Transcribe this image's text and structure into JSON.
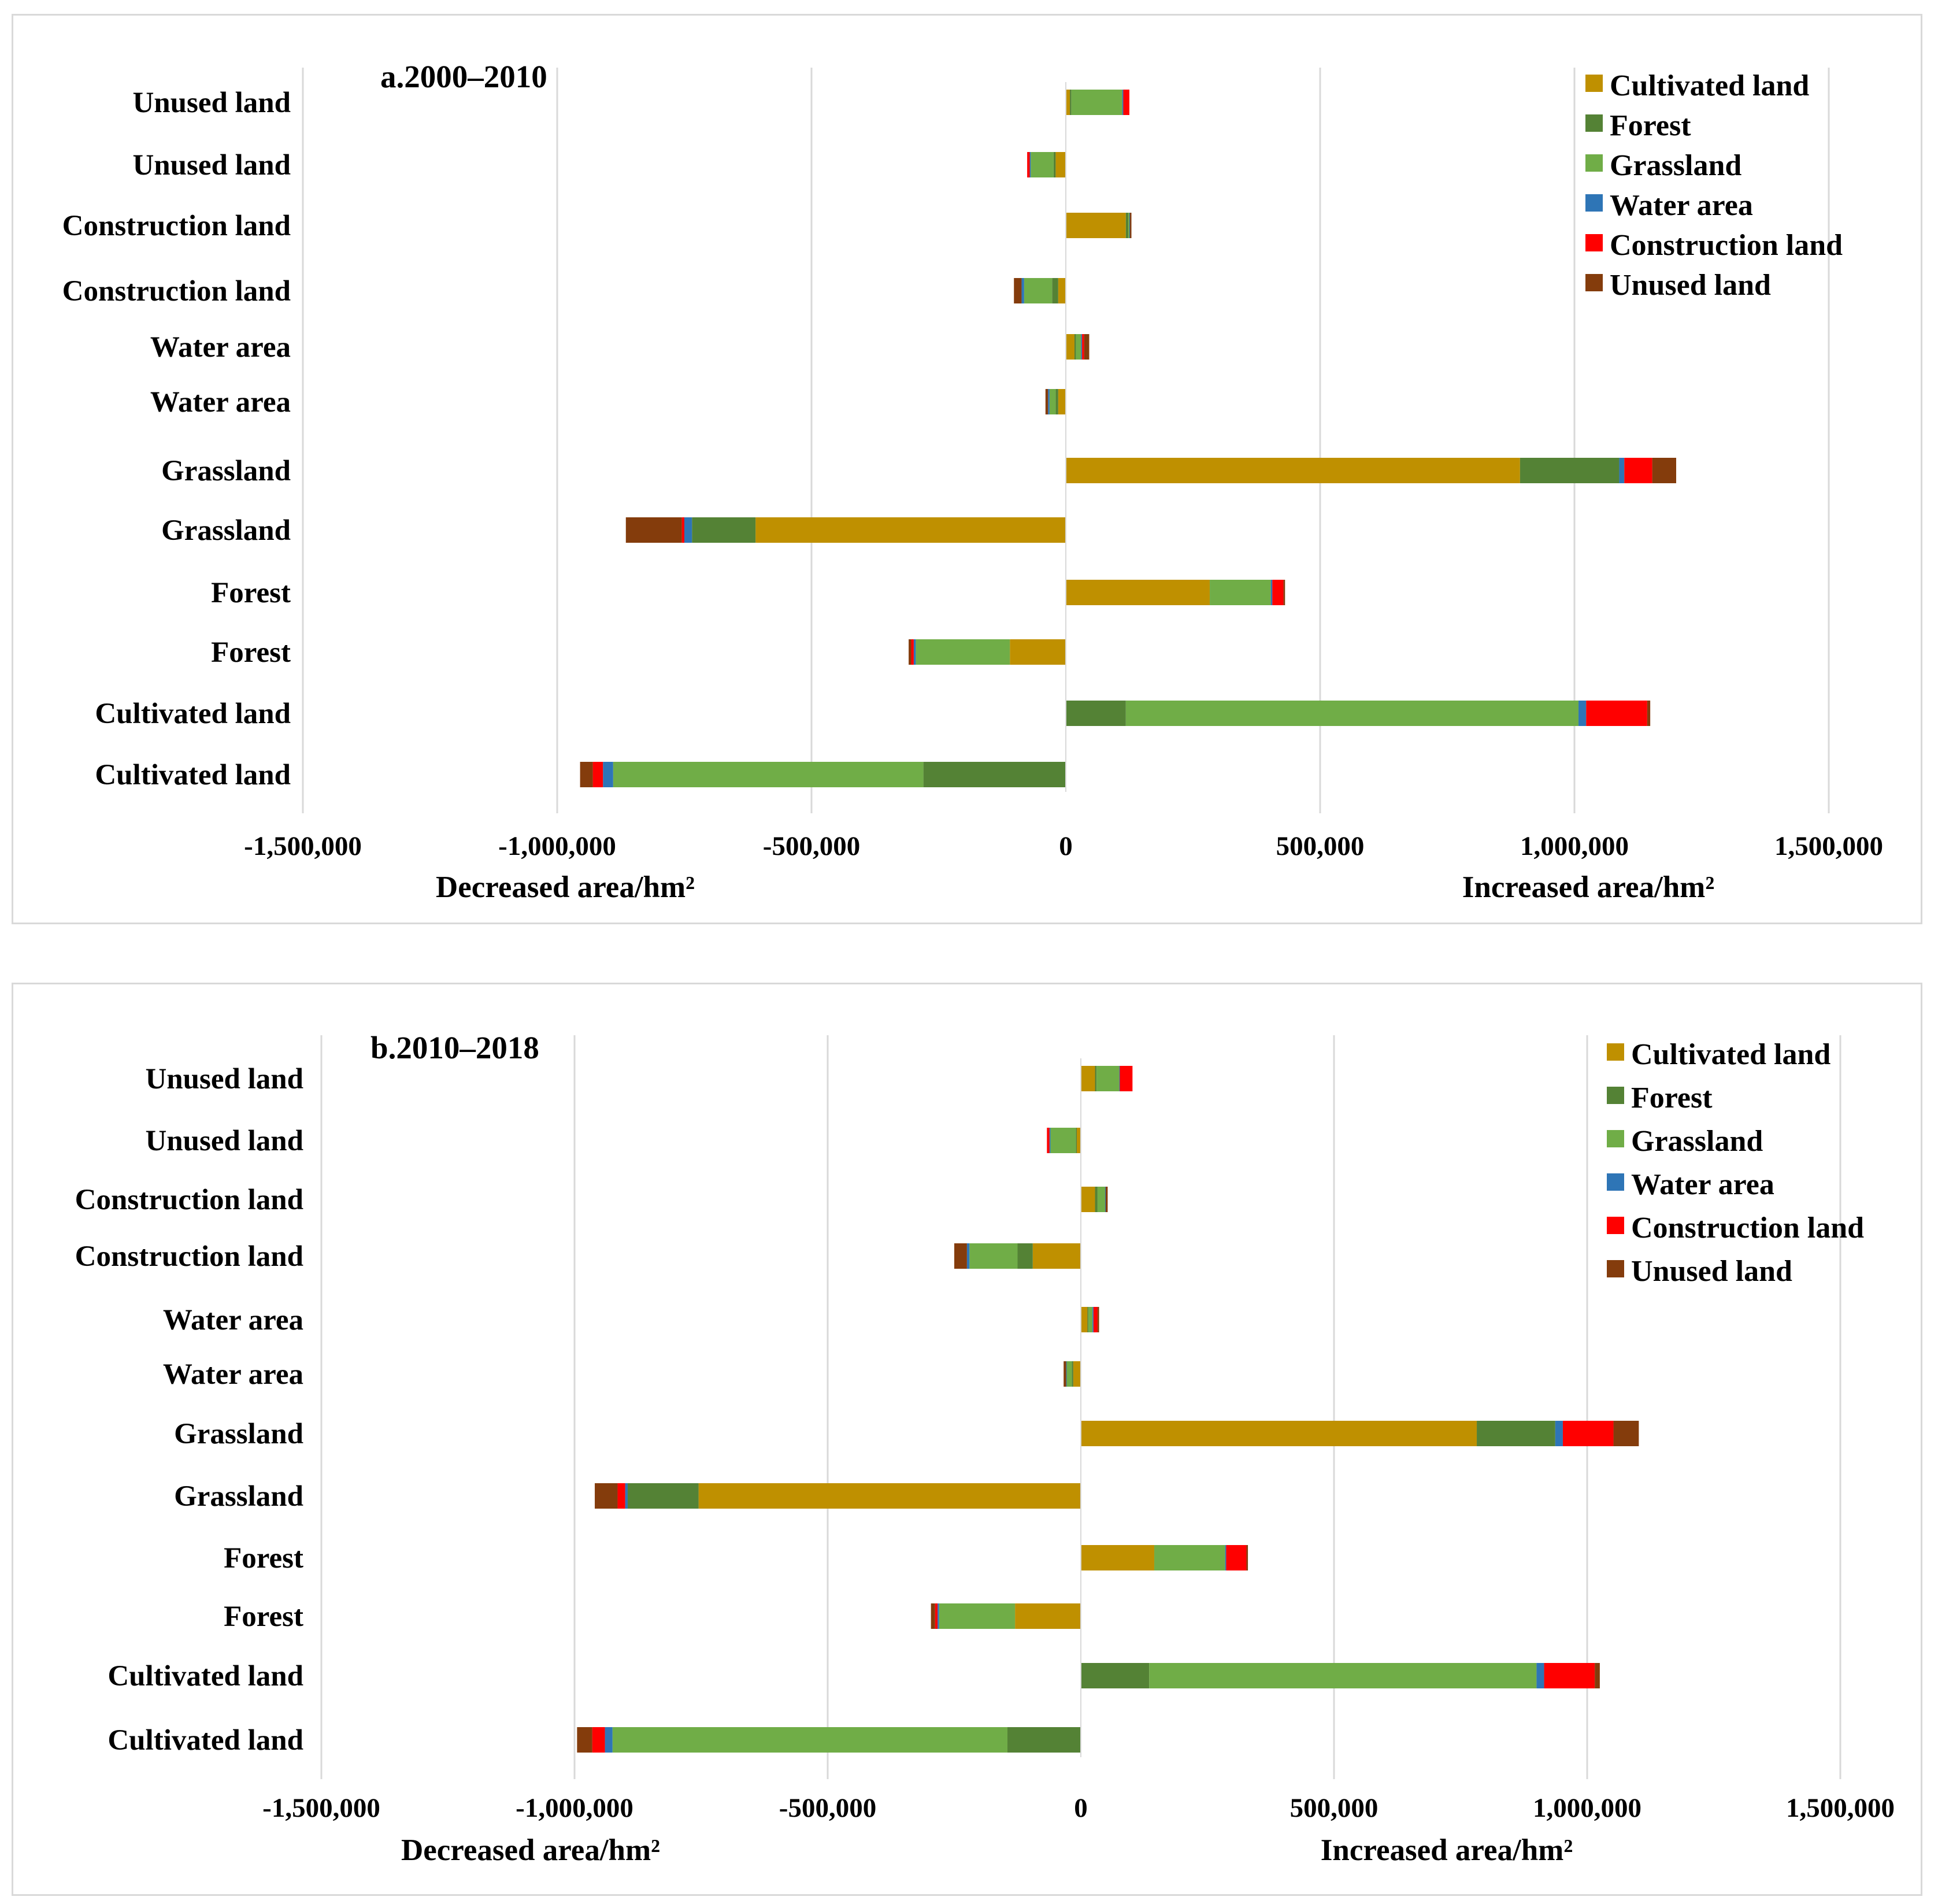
{
  "series_names": [
    "Cultivated land",
    "Forest",
    "Grassland",
    "Water area",
    "Construction land",
    "Unused land"
  ],
  "colors": {
    "Cultivated land": "#bf9000",
    "Forest": "#548235",
    "Grassland": "#70ad47",
    "Water area": "#2e75b6",
    "Construction land": "#ff0000",
    "Unused land": "#843c0c",
    "grid": "#d9d9d9",
    "dark_line": "#404040"
  },
  "chart_data": [
    {
      "type": "bar",
      "stacked": true,
      "orientation": "horizontal",
      "title": "a.2000–2010",
      "xlabel_left": "Decreased area/hm²",
      "xlabel_right": "Increased area/hm²",
      "xlim": [
        -1500000,
        1500000
      ],
      "x_ticks": [
        -1500000,
        -1000000,
        -500000,
        0,
        500000,
        1000000,
        1500000
      ],
      "x_tick_labels": [
        "-1,500,000",
        "-1,000,000",
        "-500,000",
        "0",
        "500,000",
        "1,000,000",
        "1,500,000"
      ],
      "grid": true,
      "legend": "top-right",
      "categories": [
        "Unused land",
        "Unused land",
        "Construction land",
        "Construction land",
        "Water area",
        "Water area",
        "Grassland",
        "Grassland",
        "Forest",
        "Forest",
        "Cultivated land",
        "Cultivated land"
      ],
      "series": [
        {
          "name": "Cultivated land",
          "values": [
            8000,
            -20000,
            118000,
            -15000,
            17000,
            -15000,
            893000,
            -610000,
            283000,
            -110000,
            0,
            0
          ]
        },
        {
          "name": "Forest",
          "values": [
            3000,
            -4000,
            5000,
            -12000,
            3000,
            -5000,
            195000,
            -125000,
            0,
            0,
            118000,
            -280000
          ]
        },
        {
          "name": "Grassland",
          "values": [
            100000,
            -45000,
            2000,
            -55000,
            10000,
            -12000,
            0,
            0,
            120000,
            -185000,
            890000,
            -610000
          ]
        },
        {
          "name": "Water area",
          "values": [
            2000,
            -2000,
            1000,
            -5000,
            2000,
            -3000,
            10000,
            -15000,
            3000,
            -4000,
            15000,
            -20000
          ]
        },
        {
          "name": "Construction land",
          "values": [
            12000,
            -5000,
            0,
            0,
            4000,
            0,
            55000,
            -5000,
            22000,
            -5000,
            120000,
            -20000
          ]
        },
        {
          "name": "Unused land",
          "values": [
            0,
            0,
            3000,
            -15000,
            10000,
            -5000,
            47000,
            -110000,
            3000,
            -5000,
            6000,
            -25000
          ]
        }
      ]
    },
    {
      "type": "bar",
      "stacked": true,
      "orientation": "horizontal",
      "title": "b.2010–2018",
      "xlabel_left": "Decreased area/hm²",
      "xlabel_right": "Increased area/hm²",
      "xlim": [
        -1500000,
        1500000
      ],
      "x_ticks": [
        -1500000,
        -1000000,
        -500000,
        0,
        500000,
        1000000,
        1500000
      ],
      "x_tick_labels": [
        "-1,500,000",
        "-1,000,000",
        "-500,000",
        "0",
        "500,000",
        "1,000,000",
        "1,500,000"
      ],
      "grid": true,
      "legend": "top-right",
      "categories": [
        "Unused land",
        "Unused land",
        "Construction land",
        "Construction land",
        "Water area",
        "Water area",
        "Grassland",
        "Grassland",
        "Forest",
        "Forest",
        "Cultivated land",
        "Cultivated land"
      ],
      "series": [
        {
          "name": "Cultivated land",
          "values": [
            28000,
            -8000,
            28000,
            -95000,
            13000,
            -15000,
            782000,
            -755000,
            145000,
            -130000,
            0,
            0
          ]
        },
        {
          "name": "Forest",
          "values": [
            3000,
            -2000,
            5000,
            -30000,
            2000,
            -3000,
            155000,
            -140000,
            0,
            0,
            135000,
            -145000
          ]
        },
        {
          "name": "Grassland",
          "values": [
            45000,
            -50000,
            15000,
            -95000,
            8000,
            -10000,
            0,
            0,
            140000,
            -150000,
            765000,
            -780000
          ]
        },
        {
          "name": "Water area",
          "values": [
            1000,
            -2000,
            1000,
            -5000,
            2000,
            -1000,
            15000,
            -5000,
            2000,
            -3000,
            15000,
            -15000
          ]
        },
        {
          "name": "Construction land",
          "values": [
            25000,
            -5000,
            0,
            0,
            8000,
            0,
            100000,
            -15000,
            40000,
            -5000,
            100000,
            -25000
          ]
        },
        {
          "name": "Unused land",
          "values": [
            0,
            0,
            4000,
            -25000,
            3000,
            -5000,
            50000,
            -45000,
            3000,
            -8000,
            10000,
            -30000
          ]
        }
      ]
    }
  ]
}
